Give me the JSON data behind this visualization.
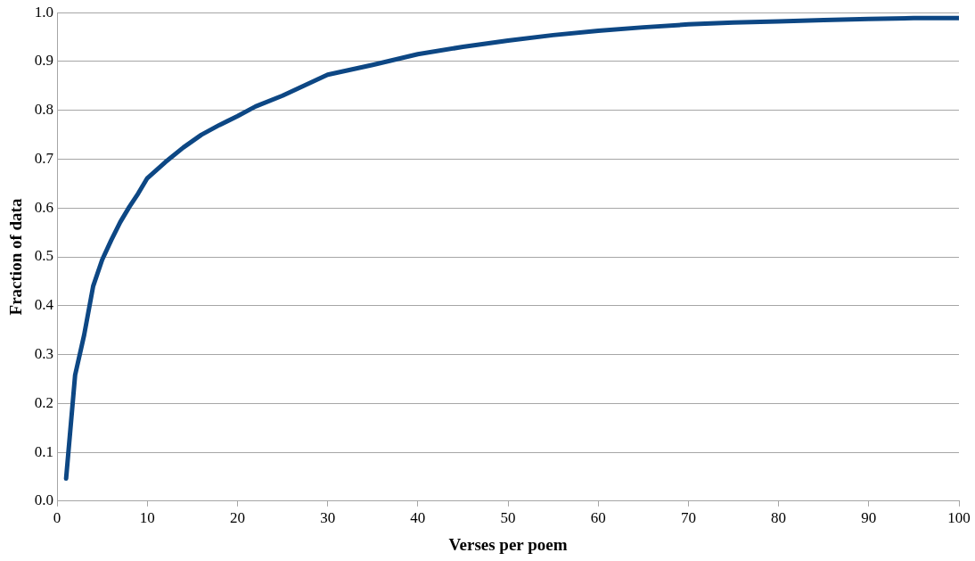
{
  "chart_data": {
    "type": "line",
    "xlabel": "Verses per poem",
    "ylabel": "Fraction of data",
    "x": [
      1,
      2,
      3,
      4,
      5,
      6,
      7,
      8,
      9,
      10,
      12,
      14,
      16,
      18,
      20,
      22,
      25,
      30,
      35,
      40,
      45,
      50,
      55,
      60,
      65,
      70,
      75,
      80,
      85,
      90,
      95,
      100
    ],
    "series": [
      {
        "color": "#0d4784",
        "values": [
          0.046,
          0.258,
          0.34,
          0.44,
          0.494,
          0.534,
          0.571,
          0.602,
          0.63,
          0.661,
          0.694,
          0.724,
          0.75,
          0.77,
          0.788,
          0.808,
          0.83,
          0.873,
          0.893,
          0.915,
          0.93,
          0.943,
          0.954,
          0.963,
          0.97,
          0.976,
          0.98,
          0.982,
          0.985,
          0.987,
          0.989,
          0.989
        ]
      }
    ],
    "xlim": [
      0,
      100
    ],
    "xticks": [
      0,
      10,
      20,
      30,
      40,
      50,
      60,
      70,
      80,
      90,
      100
    ],
    "ylim": [
      0,
      1
    ],
    "yticks": [
      {
        "value": 0,
        "label": "0.0"
      },
      {
        "value": 0.1,
        "label": "0.1"
      },
      {
        "value": 0.2,
        "label": "0.2"
      },
      {
        "value": 0.3,
        "label": "0.3"
      },
      {
        "value": 0.4,
        "label": "0.4"
      },
      {
        "value": 0.5,
        "label": "0.5"
      },
      {
        "value": 0.6,
        "label": "0.6"
      },
      {
        "value": 0.7,
        "label": "0.7"
      },
      {
        "value": 0.8,
        "label": "0.8"
      },
      {
        "value": 0.9,
        "label": "0.9"
      },
      {
        "value": 1,
        "label": "1.0"
      }
    ],
    "grid": "y",
    "legend": false,
    "marker": "none",
    "line_style": "solid"
  }
}
